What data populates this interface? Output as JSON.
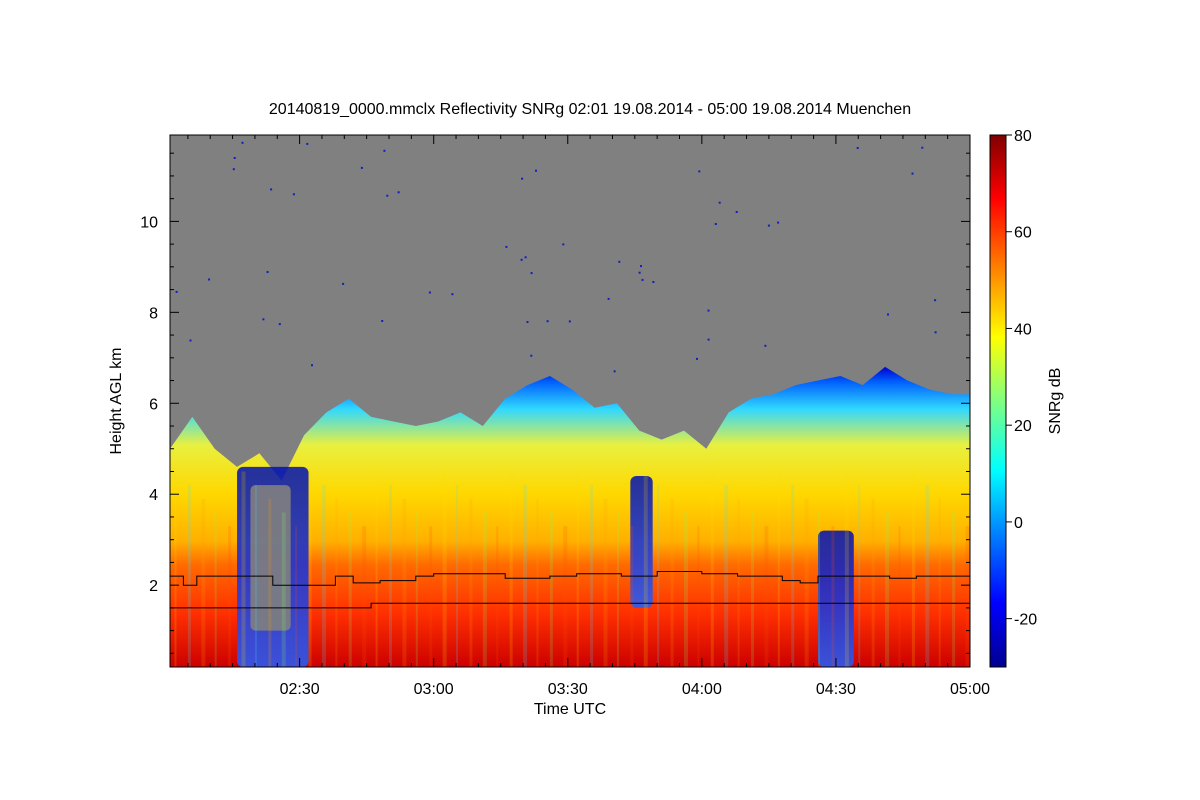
{
  "chart_data": {
    "type": "heatmap",
    "title": "20140819_0000.mmclx Reflectivity SNRg   02:01 19.08.2014 - 05:00 19.08.2014 Muenchen",
    "xlabel": "Time UTC",
    "ylabel": "Height AGL km",
    "colorbar_label": "SNRg dB",
    "xlim_minutes": [
      121,
      300
    ],
    "ylim": [
      0.2,
      11.9
    ],
    "x_ticks": [
      {
        "label": "02:30",
        "minute": 150
      },
      {
        "label": "03:00",
        "minute": 180
      },
      {
        "label": "03:30",
        "minute": 210
      },
      {
        "label": "04:00",
        "minute": 240
      },
      {
        "label": "04:30",
        "minute": 270
      },
      {
        "label": "05:00",
        "minute": 300
      }
    ],
    "y_ticks": [
      2,
      4,
      6,
      8,
      10
    ],
    "colorbar_range": [
      -30,
      80
    ],
    "colorbar_ticks": [
      -20,
      0,
      20,
      40,
      60,
      80
    ],
    "background_color": "#808080",
    "colormap": [
      "#00008f",
      "#0000ff",
      "#0080ff",
      "#00ffff",
      "#80ff80",
      "#ffff00",
      "#ff8000",
      "#ff0000",
      "#800000"
    ],
    "echo_top_km": [
      {
        "minute": 121,
        "top": 5.0
      },
      {
        "minute": 126,
        "top": 5.7
      },
      {
        "minute": 131,
        "top": 5.0
      },
      {
        "minute": 136,
        "top": 4.6
      },
      {
        "minute": 141,
        "top": 4.9
      },
      {
        "minute": 146,
        "top": 4.3
      },
      {
        "minute": 151,
        "top": 5.3
      },
      {
        "minute": 156,
        "top": 5.8
      },
      {
        "minute": 161,
        "top": 6.1
      },
      {
        "minute": 166,
        "top": 5.7
      },
      {
        "minute": 171,
        "top": 5.6
      },
      {
        "minute": 176,
        "top": 5.5
      },
      {
        "minute": 181,
        "top": 5.6
      },
      {
        "minute": 186,
        "top": 5.8
      },
      {
        "minute": 191,
        "top": 5.5
      },
      {
        "minute": 196,
        "top": 6.1
      },
      {
        "minute": 201,
        "top": 6.4
      },
      {
        "minute": 206,
        "top": 6.6
      },
      {
        "minute": 211,
        "top": 6.3
      },
      {
        "minute": 216,
        "top": 5.9
      },
      {
        "minute": 221,
        "top": 6.0
      },
      {
        "minute": 226,
        "top": 5.4
      },
      {
        "minute": 231,
        "top": 5.2
      },
      {
        "minute": 236,
        "top": 5.4
      },
      {
        "minute": 241,
        "top": 5.0
      },
      {
        "minute": 246,
        "top": 5.8
      },
      {
        "minute": 251,
        "top": 6.1
      },
      {
        "minute": 256,
        "top": 6.2
      },
      {
        "minute": 261,
        "top": 6.4
      },
      {
        "minute": 266,
        "top": 6.5
      },
      {
        "minute": 271,
        "top": 6.6
      },
      {
        "minute": 276,
        "top": 6.4
      },
      {
        "minute": 281,
        "top": 6.8
      },
      {
        "minute": 286,
        "top": 6.5
      },
      {
        "minute": 291,
        "top": 6.3
      },
      {
        "minute": 296,
        "top": 6.2
      },
      {
        "minute": 300,
        "top": 6.2
      }
    ],
    "melting_layer_upper_km": [
      {
        "minute": 121,
        "h": 2.2
      },
      {
        "minute": 124,
        "h": 2.0
      },
      {
        "minute": 127,
        "h": 2.2
      },
      {
        "minute": 142,
        "h": 2.2
      },
      {
        "minute": 144,
        "h": 2.0
      },
      {
        "minute": 152,
        "h": 2.0
      },
      {
        "minute": 158,
        "h": 2.2
      },
      {
        "minute": 162,
        "h": 2.05
      },
      {
        "minute": 168,
        "h": 2.1
      },
      {
        "minute": 176,
        "h": 2.2
      },
      {
        "minute": 180,
        "h": 2.25
      },
      {
        "minute": 190,
        "h": 2.25
      },
      {
        "minute": 196,
        "h": 2.15
      },
      {
        "minute": 206,
        "h": 2.2
      },
      {
        "minute": 212,
        "h": 2.25
      },
      {
        "minute": 222,
        "h": 2.2
      },
      {
        "minute": 230,
        "h": 2.3
      },
      {
        "minute": 234,
        "h": 2.3
      },
      {
        "minute": 240,
        "h": 2.25
      },
      {
        "minute": 248,
        "h": 2.2
      },
      {
        "minute": 258,
        "h": 2.1
      },
      {
        "minute": 262,
        "h": 2.05
      },
      {
        "minute": 266,
        "h": 2.2
      },
      {
        "minute": 278,
        "h": 2.2
      },
      {
        "minute": 282,
        "h": 2.15
      },
      {
        "minute": 288,
        "h": 2.2
      },
      {
        "minute": 300,
        "h": 2.2
      }
    ],
    "melting_layer_lower_km": [
      {
        "minute": 121,
        "h": 1.5
      },
      {
        "minute": 165,
        "h": 1.5
      },
      {
        "minute": 166,
        "h": 1.6
      },
      {
        "minute": 300,
        "h": 1.6
      }
    ]
  }
}
